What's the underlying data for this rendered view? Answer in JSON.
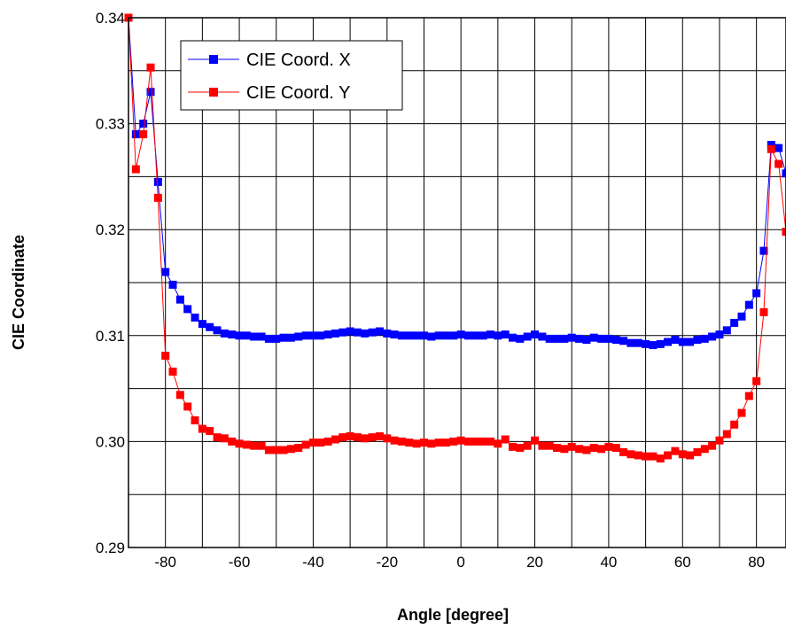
{
  "chart_data": {
    "type": "scatter",
    "xlabel": "Angle [degree]",
    "ylabel": "CIE  Coordinate",
    "xlim": [
      -90,
      88
    ],
    "ylim": [
      0.29,
      0.34
    ],
    "x_ticks": [
      -80,
      -60,
      -40,
      -20,
      0,
      20,
      40,
      60,
      80
    ],
    "y_ticks": [
      0.29,
      0.3,
      0.31,
      0.32,
      0.33,
      0.34
    ],
    "y_tick_labels": [
      "0.29",
      "0.30",
      "0.31",
      "0.32",
      "0.33",
      "0.34"
    ],
    "grid": true,
    "legend_position": "top-left",
    "series": [
      {
        "name": "CIE Coord. X",
        "color": "#0000ff",
        "points": [
          [
            -90,
            0.34
          ],
          [
            -88,
            0.329
          ],
          [
            -86,
            0.33
          ],
          [
            -84,
            0.333
          ],
          [
            -82,
            0.3245
          ],
          [
            -80,
            0.316
          ],
          [
            -78,
            0.3148
          ],
          [
            -76,
            0.3134
          ],
          [
            -74,
            0.3125
          ],
          [
            -72,
            0.3117
          ],
          [
            -70,
            0.3111
          ],
          [
            -68,
            0.3108
          ],
          [
            -66,
            0.3105
          ],
          [
            -64,
            0.3102
          ],
          [
            -62,
            0.3101
          ],
          [
            -60,
            0.31
          ],
          [
            -58,
            0.31
          ],
          [
            -56,
            0.3099
          ],
          [
            -54,
            0.3099
          ],
          [
            -52,
            0.3097
          ],
          [
            -50,
            0.3097
          ],
          [
            -48,
            0.3098
          ],
          [
            -46,
            0.3098
          ],
          [
            -44,
            0.3099
          ],
          [
            -42,
            0.31
          ],
          [
            -40,
            0.31
          ],
          [
            -38,
            0.31
          ],
          [
            -36,
            0.3101
          ],
          [
            -34,
            0.3102
          ],
          [
            -32,
            0.3103
          ],
          [
            -30,
            0.3104
          ],
          [
            -28,
            0.3103
          ],
          [
            -26,
            0.3102
          ],
          [
            -24,
            0.3103
          ],
          [
            -22,
            0.3104
          ],
          [
            -20,
            0.3102
          ],
          [
            -18,
            0.3101
          ],
          [
            -16,
            0.31
          ],
          [
            -14,
            0.31
          ],
          [
            -12,
            0.31
          ],
          [
            -10,
            0.31
          ],
          [
            -8,
            0.3099
          ],
          [
            -6,
            0.31
          ],
          [
            -4,
            0.31
          ],
          [
            -2,
            0.31
          ],
          [
            0,
            0.3101
          ],
          [
            2,
            0.31
          ],
          [
            4,
            0.31
          ],
          [
            6,
            0.31
          ],
          [
            8,
            0.3101
          ],
          [
            10,
            0.31
          ],
          [
            12,
            0.3101
          ],
          [
            14,
            0.3098
          ],
          [
            16,
            0.3097
          ],
          [
            18,
            0.3099
          ],
          [
            20,
            0.3101
          ],
          [
            22,
            0.3099
          ],
          [
            24,
            0.3097
          ],
          [
            26,
            0.3097
          ],
          [
            28,
            0.3097
          ],
          [
            30,
            0.3098
          ],
          [
            32,
            0.3097
          ],
          [
            34,
            0.3096
          ],
          [
            36,
            0.3098
          ],
          [
            38,
            0.3097
          ],
          [
            40,
            0.3097
          ],
          [
            42,
            0.3096
          ],
          [
            44,
            0.3095
          ],
          [
            46,
            0.3093
          ],
          [
            48,
            0.3093
          ],
          [
            50,
            0.3092
          ],
          [
            52,
            0.3091
          ],
          [
            54,
            0.3092
          ],
          [
            56,
            0.3094
          ],
          [
            58,
            0.3096
          ],
          [
            60,
            0.3094
          ],
          [
            62,
            0.3094
          ],
          [
            64,
            0.3096
          ],
          [
            66,
            0.3097
          ],
          [
            68,
            0.3099
          ],
          [
            70,
            0.3101
          ],
          [
            72,
            0.3105
          ],
          [
            74,
            0.3112
          ],
          [
            76,
            0.3118
          ],
          [
            78,
            0.3129
          ],
          [
            80,
            0.314
          ],
          [
            82,
            0.318
          ],
          [
            84,
            0.328
          ],
          [
            86,
            0.3277
          ],
          [
            88,
            0.3253
          ]
        ]
      },
      {
        "name": "CIE Coord. Y",
        "color": "#ff0000",
        "points": [
          [
            -90,
            0.34
          ],
          [
            -88,
            0.3257
          ],
          [
            -86,
            0.329
          ],
          [
            -84,
            0.3353
          ],
          [
            -82,
            0.323
          ],
          [
            -80,
            0.3081
          ],
          [
            -78,
            0.3066
          ],
          [
            -76,
            0.3044
          ],
          [
            -74,
            0.3033
          ],
          [
            -72,
            0.302
          ],
          [
            -70,
            0.3012
          ],
          [
            -68,
            0.301
          ],
          [
            -66,
            0.3004
          ],
          [
            -64,
            0.3003
          ],
          [
            -62,
            0.3
          ],
          [
            -60,
            0.2998
          ],
          [
            -58,
            0.2997
          ],
          [
            -56,
            0.2996
          ],
          [
            -54,
            0.2996
          ],
          [
            -52,
            0.2992
          ],
          [
            -50,
            0.2992
          ],
          [
            -48,
            0.2992
          ],
          [
            -46,
            0.2993
          ],
          [
            -44,
            0.2994
          ],
          [
            -42,
            0.2997
          ],
          [
            -40,
            0.2999
          ],
          [
            -38,
            0.2999
          ],
          [
            -36,
            0.3
          ],
          [
            -34,
            0.3002
          ],
          [
            -32,
            0.3004
          ],
          [
            -30,
            0.3005
          ],
          [
            -28,
            0.3004
          ],
          [
            -26,
            0.3003
          ],
          [
            -24,
            0.3004
          ],
          [
            -22,
            0.3005
          ],
          [
            -20,
            0.3003
          ],
          [
            -18,
            0.3001
          ],
          [
            -16,
            0.3
          ],
          [
            -14,
            0.2999
          ],
          [
            -12,
            0.2998
          ],
          [
            -10,
            0.2999
          ],
          [
            -8,
            0.2998
          ],
          [
            -6,
            0.2999
          ],
          [
            -4,
            0.2999
          ],
          [
            -2,
            0.3
          ],
          [
            0,
            0.3001
          ],
          [
            2,
            0.3
          ],
          [
            4,
            0.3
          ],
          [
            6,
            0.3
          ],
          [
            8,
            0.3
          ],
          [
            10,
            0.2998
          ],
          [
            12,
            0.3002
          ],
          [
            14,
            0.2995
          ],
          [
            16,
            0.2994
          ],
          [
            18,
            0.2996
          ],
          [
            20,
            0.3001
          ],
          [
            22,
            0.2996
          ],
          [
            24,
            0.2996
          ],
          [
            26,
            0.2994
          ],
          [
            28,
            0.2993
          ],
          [
            30,
            0.2995
          ],
          [
            32,
            0.2993
          ],
          [
            34,
            0.2992
          ],
          [
            36,
            0.2994
          ],
          [
            38,
            0.2993
          ],
          [
            40,
            0.2995
          ],
          [
            42,
            0.2994
          ],
          [
            44,
            0.299
          ],
          [
            46,
            0.2988
          ],
          [
            48,
            0.2987
          ],
          [
            50,
            0.2986
          ],
          [
            52,
            0.2986
          ],
          [
            54,
            0.2984
          ],
          [
            56,
            0.2987
          ],
          [
            58,
            0.2991
          ],
          [
            60,
            0.2988
          ],
          [
            62,
            0.2987
          ],
          [
            64,
            0.299
          ],
          [
            66,
            0.2993
          ],
          [
            68,
            0.2996
          ],
          [
            70,
            0.3001
          ],
          [
            72,
            0.3007
          ],
          [
            74,
            0.3016
          ],
          [
            76,
            0.3027
          ],
          [
            78,
            0.3043
          ],
          [
            80,
            0.3057
          ],
          [
            82,
            0.3122
          ],
          [
            84,
            0.3276
          ],
          [
            86,
            0.3262
          ],
          [
            88,
            0.3198
          ]
        ]
      }
    ]
  }
}
